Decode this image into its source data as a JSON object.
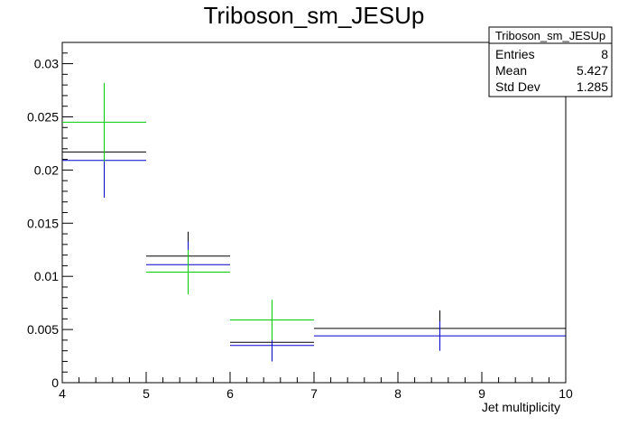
{
  "chart_data": {
    "type": "scatter",
    "title": "Triboson_sm_JESUp",
    "xlabel": "Jet multiplicity",
    "ylabel": "",
    "xlim": [
      4,
      10
    ],
    "ylim": [
      0,
      0.032
    ],
    "x_ticks": [
      "4",
      "5",
      "6",
      "7",
      "8",
      "9",
      "10"
    ],
    "y_ticks": [
      "0",
      "0.005",
      "0.01",
      "0.015",
      "0.02",
      "0.025",
      "0.03"
    ],
    "grid": false,
    "series": [
      {
        "color": "#000000",
        "points": [
          {
            "x_low": 4,
            "x_high": 5,
            "y": 0.0217,
            "err": 0.0042
          },
          {
            "x_low": 5,
            "x_high": 6,
            "y": 0.0119,
            "err": 0.0023
          },
          {
            "x_low": 6,
            "x_high": 7,
            "y": 0.0038,
            "err": 0.0018
          },
          {
            "x_low": 7,
            "x_high": 10,
            "y": 0.0051,
            "err": 0.0017
          }
        ]
      },
      {
        "color": "#0000cc",
        "points": [
          {
            "x_low": 4,
            "x_high": 5,
            "y": 0.0209,
            "err": 0.0035
          },
          {
            "x_low": 5,
            "x_high": 6,
            "y": 0.0111,
            "err": 0.0022
          },
          {
            "x_low": 6,
            "x_high": 7,
            "y": 0.0035,
            "err": 0.0015
          },
          {
            "x_low": 7,
            "x_high": 10,
            "y": 0.0044,
            "err": 0.0014
          }
        ]
      },
      {
        "color": "#00cc00",
        "points": [
          {
            "x_low": 4,
            "x_high": 5,
            "y": 0.0245,
            "err": 0.0037
          },
          {
            "x_low": 5,
            "x_high": 6,
            "y": 0.0104,
            "err": 0.0021
          },
          {
            "x_low": 6,
            "x_high": 7,
            "y": 0.0059,
            "err": 0.0019
          }
        ]
      }
    ]
  },
  "stats_box": {
    "title": "Triboson_sm_JESUp",
    "rows": [
      {
        "label": "Entries",
        "value": "8"
      },
      {
        "label": "Mean",
        "value": "5.427"
      },
      {
        "label": "Std Dev",
        "value": "1.285"
      }
    ]
  }
}
